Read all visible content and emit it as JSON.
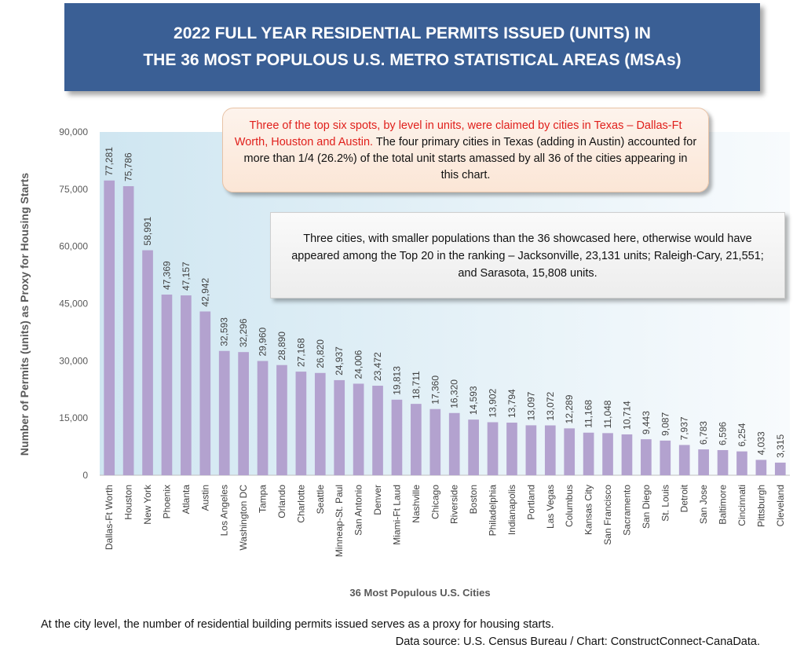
{
  "header": {
    "title_line1": "2022 FULL YEAR RESIDENTIAL PERMITS ISSUED (UNITS) IN",
    "title_line2": "THE 36 MOST POPULOUS U.S. METRO STATISTICAL AREAS (MSAs)"
  },
  "callouts": {
    "texas_red": "Three of the top six spots, by level in units, were claimed by cities in Texas – Dallas-Ft Worth, Houston and Austin.",
    "texas_rest": " The four primary cities in Texas (adding in Austin) accounted for more than  1/4 (26.2%) of the total unit starts amassed by all 36 of the cities appearing in this chart.",
    "smaller_cities": "Three cities, with smaller populations than the 36 showcased here, otherwise would have appeared among the Top 20 in the ranking – Jacksonville, 23,131 units; Raleigh-Cary, 21,551; and Sarasota, 15,808 units."
  },
  "footer": {
    "note": "At the city level, the number of residential building permits issued serves as a proxy for housing starts.",
    "source": "Data source: U.S. Census Bureau / Chart: ConstructConnect-CanaData."
  },
  "colors": {
    "bar": "#b3a2cf",
    "banner": "#3a5f95",
    "plot_bg_left": "#cfe6f1",
    "accent_red": "#e0201c"
  },
  "chart_data": {
    "type": "bar",
    "title": "",
    "xlabel": "36 Most Populous U.S. Cities",
    "ylabel": "Number of Permits (units) as Proxy for Housing Starts",
    "ylim": [
      0,
      90000
    ],
    "yticks": [
      0,
      15000,
      30000,
      45000,
      60000,
      75000,
      90000
    ],
    "ytick_labels": [
      "0",
      "15,000",
      "30,000",
      "45,000",
      "60,000",
      "75,000",
      "90,000"
    ],
    "grid": false,
    "legend": "none",
    "categories": [
      "Dallas-Ft Worth",
      "Houston",
      "New York",
      "Phoenix",
      "Atlanta",
      "Austin",
      "Los Angeles",
      "Washington DC",
      "Tampa",
      "Orlando",
      "Charlotte",
      "Seattle",
      "Minneap-St. Paul",
      "San Antonio",
      "Denver",
      "Miami-Ft Laud",
      "Nashville",
      "Chicago",
      "Riverside",
      "Boston",
      "Philadelphia",
      "Indianapolis",
      "Portland",
      "Las Vegas",
      "Columbus",
      "Kansas City",
      "San Francisco",
      "Sacramento",
      "San Diego",
      "St. Louis",
      "Detroit",
      "San Jose",
      "Baltimore",
      "Cincinnati",
      "Pittsburgh",
      "Cleveland"
    ],
    "values": [
      77281,
      75786,
      58991,
      47369,
      47157,
      42942,
      32593,
      32296,
      29960,
      28890,
      27168,
      26820,
      24937,
      24006,
      23472,
      19813,
      18711,
      17360,
      16320,
      14593,
      13902,
      13794,
      13097,
      13072,
      12289,
      11168,
      11048,
      10714,
      9443,
      9087,
      7937,
      6783,
      6596,
      6254,
      4033,
      3315
    ],
    "value_labels": [
      "77,281",
      "75,786",
      "58,991",
      "47,369",
      "47,157",
      "42,942",
      "32,593",
      "32,296",
      "29,960",
      "28,890",
      "27,168",
      "26,820",
      "24,937",
      "24,006",
      "23,472",
      "19,813",
      "18,711",
      "17,360",
      "16,320",
      "14,593",
      "13,902",
      "13,794",
      "13,097",
      "13,072",
      "12,289",
      "11,168",
      "11,048",
      "10,714",
      "9,443",
      "9,087",
      "7,937",
      "6,783",
      "6,596",
      "6,254",
      "4,033",
      "3,315"
    ]
  }
}
